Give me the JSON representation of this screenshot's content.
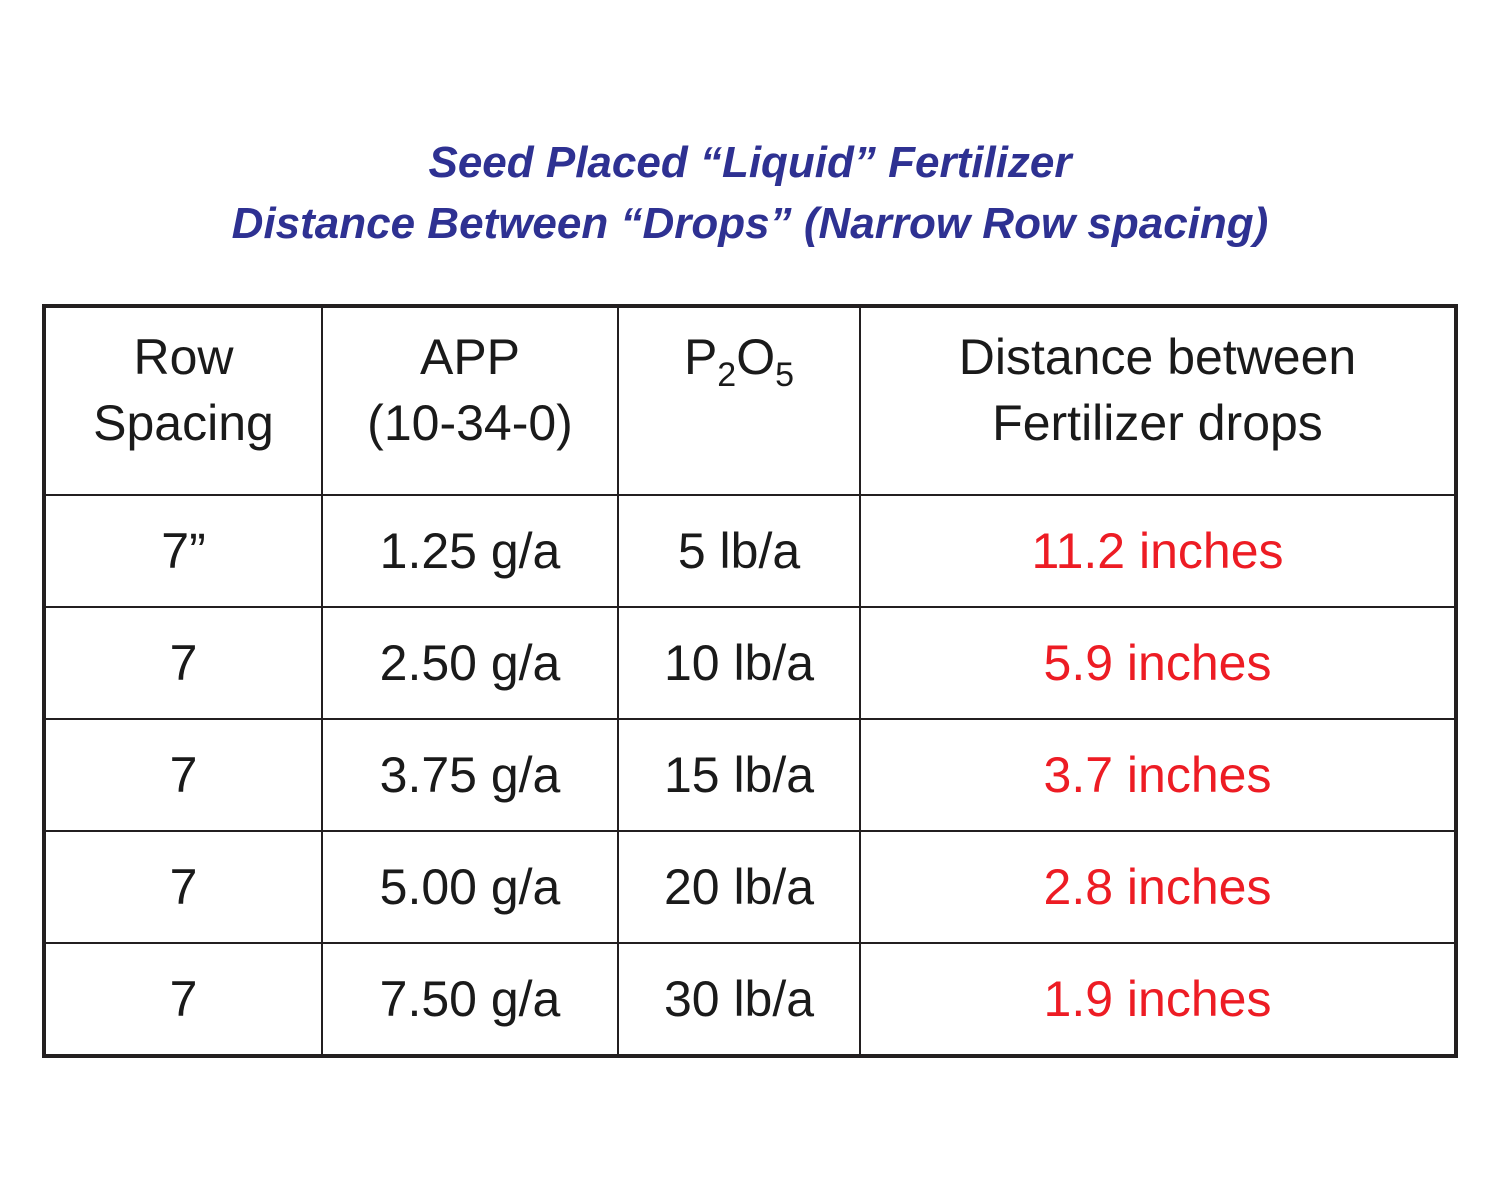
{
  "title": {
    "line1": "Seed Placed “Liquid” Fertilizer",
    "line2": "Distance Between “Drops” (Narrow Row spacing)"
  },
  "table": {
    "headers": {
      "row_spacing": [
        "Row",
        "Spacing"
      ],
      "app": [
        "APP",
        "(10-34-0)"
      ],
      "p2o5": {
        "p": "P",
        "sub1": "2",
        "o": "O",
        "sub2": "5"
      },
      "distance": [
        "Distance between",
        "Fertilizer drops"
      ]
    },
    "rows": [
      {
        "row_spacing": "7”",
        "app": "1.25 g/a",
        "p2o5": "5 lb/a",
        "distance": "11.2 inches"
      },
      {
        "row_spacing": "7",
        "app": "2.50 g/a",
        "p2o5": "10 lb/a",
        "distance": "5.9 inches"
      },
      {
        "row_spacing": "7",
        "app": "3.75 g/a",
        "p2o5": "15 lb/a",
        "distance": "3.7 inches"
      },
      {
        "row_spacing": "7",
        "app": "5.00 g/a",
        "p2o5": "20 lb/a",
        "distance": "2.8 inches"
      },
      {
        "row_spacing": "7",
        "app": "7.50 g/a",
        "p2o5": "30 lb/a",
        "distance": "1.9 inches"
      }
    ]
  },
  "colors": {
    "title": "#2e3192",
    "distance_values": "#ed1c24",
    "text": "#1a1a1a",
    "border": "#231f20"
  }
}
